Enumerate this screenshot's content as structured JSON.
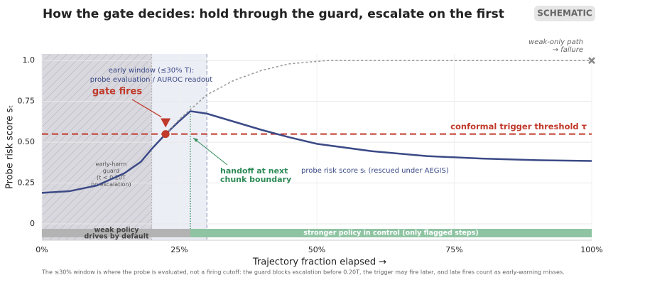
{
  "chart_data": {
    "type": "line",
    "title": "How the gate decides: hold through the guard, escalate on the first",
    "badge": "SCHEMATIC",
    "xlabel": "Trajectory fraction elapsed  →",
    "ylabel": "Probe risk score  sₜ",
    "xlim": [
      0,
      1
    ],
    "ylim": [
      -0.1,
      1.04
    ],
    "xticks": [
      {
        "value": 0,
        "label": "0%"
      },
      {
        "value": 0.25,
        "label": "25%"
      },
      {
        "value": 0.5,
        "label": "50%"
      },
      {
        "value": 0.75,
        "label": "75%"
      },
      {
        "value": 1,
        "label": "100%"
      }
    ],
    "yticks": [
      0,
      0.25,
      {
        "value": 0.5,
        "label": "0.50"
      },
      0.75,
      {
        "value": 1,
        "label": "1.0"
      }
    ],
    "grid": true,
    "series": [
      {
        "annotation": "probe risk score  sₜ  (rescued under AEGIS)",
        "color": "#3b4a86",
        "style": "solid",
        "x": [
          0,
          0.05,
          0.1,
          0.15,
          0.18,
          0.2,
          0.225,
          0.25,
          0.27,
          0.3,
          0.35,
          0.4,
          0.45,
          0.5,
          0.6,
          0.7,
          0.8,
          0.9,
          1.0
        ],
        "values": [
          0.19,
          0.2,
          0.235,
          0.31,
          0.38,
          0.46,
          0.55,
          0.63,
          0.69,
          0.675,
          0.625,
          0.575,
          0.53,
          0.49,
          0.445,
          0.415,
          0.4,
          0.39,
          0.385
        ]
      },
      {
        "annotation": [
          "weak-only path",
          "→ failure"
        ],
        "color": "#999999",
        "style": "dotted",
        "x": [
          0.225,
          0.25,
          0.3,
          0.35,
          0.4,
          0.45,
          0.5,
          0.52,
          1.0
        ],
        "values": [
          0.55,
          0.64,
          0.79,
          0.88,
          0.94,
          0.98,
          0.995,
          1.0,
          1.0
        ]
      }
    ],
    "failure_marker": {
      "x": 1,
      "y": 1,
      "color": "#888888"
    },
    "threshold": {
      "value": 0.55,
      "label": "conformal trigger threshold  τ",
      "color": "#c0392b"
    },
    "regions": [
      {
        "start": 0,
        "end": 0.2,
        "color": "#c9c7d0",
        "hatch": true,
        "label": [
          "early-harm",
          "guard",
          "(t < 0.20T",
          "no escalation)"
        ]
      },
      {
        "start": 0.2,
        "end": 0.3,
        "color": "#e4e7f1",
        "hatch": false,
        "label": [
          "early window (≤30% T):",
          "probe evaluation / AUROC readout"
        ]
      }
    ],
    "gate": {
      "x": 0.225,
      "y": 0.55,
      "marker_y": 0.62,
      "label": "gate fires",
      "color": "#c0392b"
    },
    "handoff": {
      "x": 0.27,
      "label": [
        "handoff at next",
        "chunk boundary"
      ],
      "color": "#2e8b57"
    },
    "policy_bands": [
      {
        "start": 0,
        "end": 0.27,
        "color": "#b3b3b3",
        "label": [
          "weak policy",
          "drives by default"
        ]
      },
      {
        "start": 0.27,
        "end": 1,
        "color": "#8fc4a3",
        "label": [
          "stronger policy in control  (only flagged steps)"
        ]
      }
    ],
    "footnote": "The  ≤30% window is where the probe is evaluated, not a firing cutoff: the guard blocks escalation before 0.20T, the trigger may fire later, and late fires count as early-warning misses."
  }
}
